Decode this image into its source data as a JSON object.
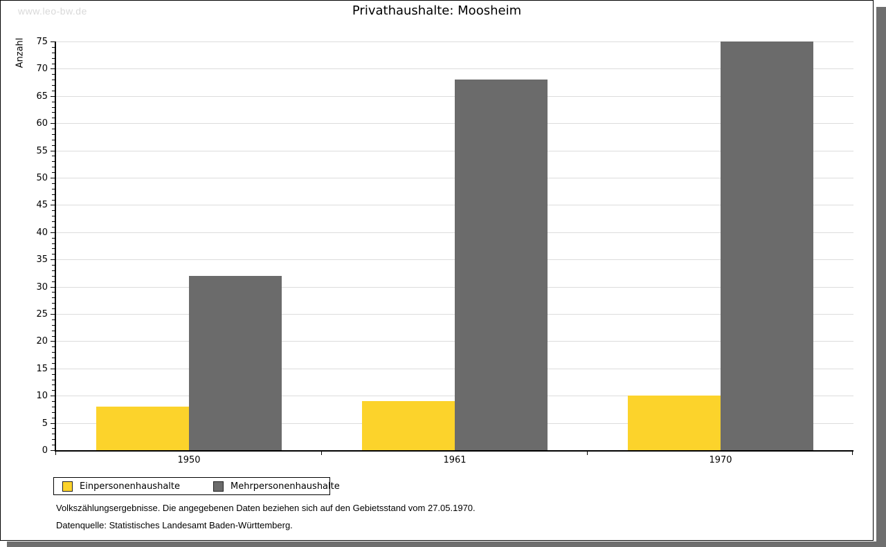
{
  "watermark": "www.leo-bw.de",
  "title": "Privathaushalte: Moosheim",
  "chart_data": {
    "type": "bar",
    "title": "Privathaushalte: Moosheim",
    "xlabel": "",
    "ylabel": "Anzahl",
    "categories": [
      "1950",
      "1961",
      "1970"
    ],
    "series": [
      {
        "name": "Einpersonenhaushalte",
        "color": "#FCD32B",
        "values": [
          8,
          9,
          10
        ]
      },
      {
        "name": "Mehrpersonenhaushalte",
        "color": "#6B6B6B",
        "values": [
          32,
          68,
          75
        ]
      }
    ],
    "ylim": [
      0,
      75
    ],
    "ytick_step": 5,
    "ytick_minor_step": 1,
    "grid": true,
    "legend_position": "bottom-left"
  },
  "footnotes": {
    "line1": "Volkszählungsergebnisse. Die angegebenen Daten beziehen sich auf den Gebietsstand vom 27.05.1970.",
    "line2": "Datenquelle: Statistisches Landesamt Baden-Württemberg."
  },
  "colors": {
    "grid": "#dcdcdc",
    "axis": "#000000",
    "shadow": "#6e6e6e",
    "watermark": "#d9d9d9"
  }
}
